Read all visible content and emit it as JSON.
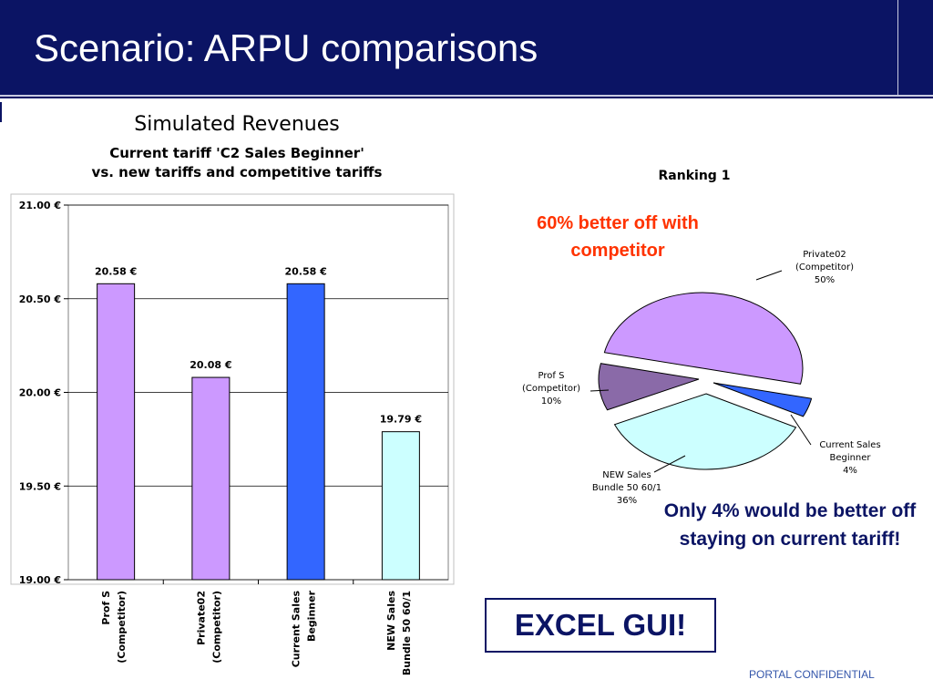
{
  "slide": {
    "title": "Scenario: ARPU comparisons",
    "annotation_red": "60% better off with competitor",
    "annotation_blue": "Only 4% would be better off staying on current tariff!",
    "excel_label": "EXCEL GUI!",
    "footer": "PORTAL CONFIDENTIAL"
  },
  "chart_data": [
    {
      "type": "bar",
      "title": "Simulated Revenues",
      "subtitle_lines": [
        "Current tariff 'C2 Sales Beginner'",
        "vs. new tariffs and competitive tariffs"
      ],
      "categories": [
        [
          "Prof S",
          "(Competitor)"
        ],
        [
          "Private02",
          "(Competitor)"
        ],
        [
          "Current Sales",
          "Beginner"
        ],
        [
          "NEW Sales",
          "Bundle 50 60/1"
        ]
      ],
      "values": [
        20.58,
        20.08,
        20.58,
        19.79
      ],
      "value_labels": [
        "20.58 €",
        "20.08 €",
        "20.58 €",
        "19.79 €"
      ],
      "colors": [
        "#cc99ff",
        "#cc99ff",
        "#3366ff",
        "#ccffff"
      ],
      "ylim": [
        19.0,
        21.0
      ],
      "yticks": [
        19.0,
        19.5,
        20.0,
        20.5,
        21.0
      ],
      "ytick_labels": [
        "19.00 €",
        "19.50 €",
        "20.00 €",
        "20.50 €",
        "21.00 €"
      ],
      "grid": true
    },
    {
      "type": "pie",
      "title": "Ranking 1",
      "slices": [
        {
          "label": [
            "Private02",
            "(Competitor)",
            "50%"
          ],
          "value": 50,
          "color": "#cc99ff"
        },
        {
          "label": [
            "Current Sales",
            "Beginner",
            "4%"
          ],
          "value": 4,
          "color": "#3366ff"
        },
        {
          "label": [
            "NEW Sales",
            "Bundle 50 60/1",
            "36%"
          ],
          "value": 36,
          "color": "#ccffff"
        },
        {
          "label": [
            "Prof S",
            "(Competitor)",
            "10%"
          ],
          "value": 10,
          "color": "#8a6aa8"
        }
      ]
    }
  ]
}
